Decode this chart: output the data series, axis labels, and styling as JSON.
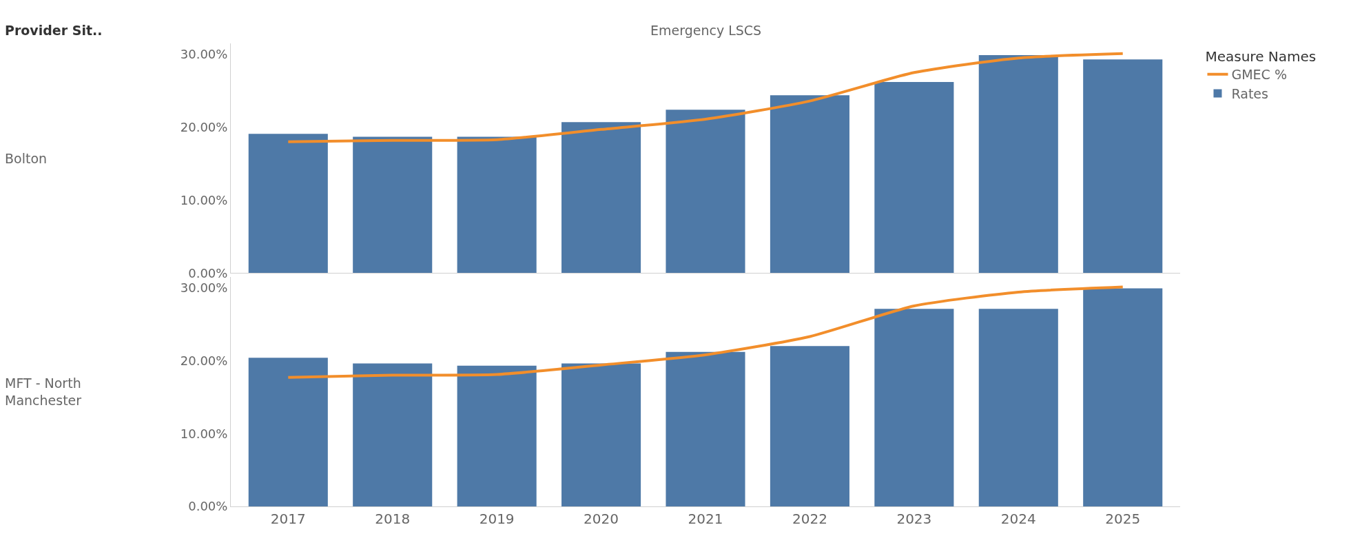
{
  "chart_data": [
    {
      "type": "bar",
      "title": "Emergency LSCS",
      "ylabel": "Bolton",
      "annotations": [
        "Provider Sit.."
      ],
      "legend_title": "Measure Names",
      "legend": "top right",
      "tick_labels": "y",
      "categories": [
        "2017",
        "2018",
        "2019",
        "2020",
        "2021",
        "2022",
        "2023",
        "2024",
        "2025"
      ],
      "series": [
        {
          "name": "GMEC %",
          "type": "line",
          "color": "#f28e2b",
          "values": [
            18.0,
            18.2,
            18.3,
            19.7,
            21.1,
            23.6,
            27.5,
            29.5,
            30.1
          ]
        },
        {
          "name": "Rates",
          "color": "#4e79a7",
          "values": [
            19.1,
            18.7,
            18.7,
            20.7,
            22.4,
            24.4,
            26.2,
            29.9,
            29.3
          ]
        }
      ],
      "ylim": [
        0,
        31.5
      ],
      "yticks": [
        {
          "value": 0,
          "label": "0.00%"
        },
        {
          "value": 10,
          "label": "10.00%"
        },
        {
          "value": 20,
          "label": "20.00%"
        },
        {
          "value": 30,
          "label": "30.00%"
        }
      ],
      "marker": "none",
      "line_style": "solid"
    },
    {
      "type": "bar",
      "ylabel": "MFT - North Manchester",
      "categories": [
        "2017",
        "2018",
        "2019",
        "2020",
        "2021",
        "2022",
        "2023",
        "2024",
        "2025"
      ],
      "series": [
        {
          "name": "GMEC %",
          "type": "line",
          "color": "#f28e2b",
          "values": [
            17.7,
            18.0,
            18.1,
            19.4,
            20.8,
            23.3,
            27.5,
            29.4,
            30.1
          ]
        },
        {
          "name": "Rates",
          "color": "#4e79a7",
          "values": [
            20.4,
            19.6,
            19.3,
            19.6,
            21.2,
            22.0,
            27.1,
            27.1,
            29.9
          ]
        }
      ],
      "ylim": [
        0,
        31.5
      ],
      "yticks": [
        {
          "value": 0,
          "label": "0.00%"
        },
        {
          "value": 10,
          "label": "10.00%"
        },
        {
          "value": 20,
          "label": "20.00%"
        },
        {
          "value": 30,
          "label": "30.00%"
        }
      ],
      "marker": "none",
      "line_style": "solid"
    }
  ]
}
